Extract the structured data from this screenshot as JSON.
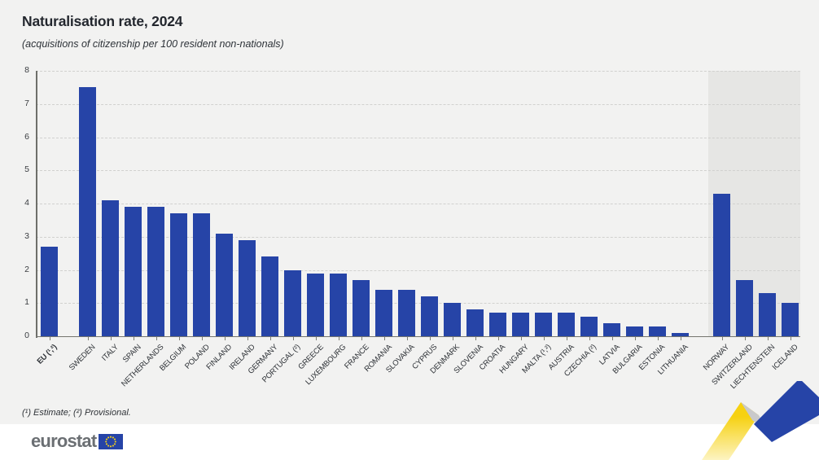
{
  "header": {
    "title": "Naturalisation rate, 2024",
    "subtitle": "(acquisitions of citizenship per 100 resident non-nationals)"
  },
  "footnote": "(¹) Estimate; (²) Provisional.",
  "logo": {
    "text": "eurostat"
  },
  "colors": {
    "bar": "#2644a7",
    "page_background": "#f2f2f1",
    "efta_band": "#e6e6e4",
    "grid": "#d1d1cf",
    "axis": "#6e6f6a",
    "footer_background": "#ffffff",
    "logo_gray": "#6b6f73",
    "flag_blue": "#2644a7",
    "star_yellow": "#f7d117",
    "ribbon_yellow": "#f7d117",
    "ribbon_gray": "#c9c9cb",
    "ribbon_blue": "#2644a7"
  },
  "chart_data": {
    "type": "bar",
    "title": "Naturalisation rate, 2024",
    "subtitle": "(acquisitions of citizenship per 100 resident non-nationals)",
    "xlabel": "",
    "ylabel": "",
    "ylim": [
      0,
      8
    ],
    "yticks": [
      0,
      1,
      2,
      3,
      4,
      5,
      6,
      7,
      8
    ],
    "grid": "horizontal dashed gridlines",
    "legend": "none",
    "highlighted_group": "efta (shaded background band)",
    "series": [
      {
        "label": "EU (¹,²)",
        "value": 2.7,
        "group": "eu",
        "bold": true
      },
      {
        "label": "SWEDEN",
        "value": 7.5,
        "group": "members"
      },
      {
        "label": "ITALY",
        "value": 4.1,
        "group": "members"
      },
      {
        "label": "SPAIN",
        "value": 3.9,
        "group": "members"
      },
      {
        "label": "NETHERLANDS",
        "value": 3.9,
        "group": "members"
      },
      {
        "label": "BELGIUM",
        "value": 3.7,
        "group": "members"
      },
      {
        "label": "POLAND",
        "value": 3.7,
        "group": "members"
      },
      {
        "label": "FINLAND",
        "value": 3.1,
        "group": "members"
      },
      {
        "label": "IRELAND",
        "value": 2.9,
        "group": "members"
      },
      {
        "label": "GERMANY",
        "value": 2.4,
        "group": "members"
      },
      {
        "label": "PORTUGAL (²)",
        "value": 2.0,
        "group": "members"
      },
      {
        "label": "GREECE",
        "value": 1.9,
        "group": "members"
      },
      {
        "label": "LUXEMBOURG",
        "value": 1.9,
        "group": "members"
      },
      {
        "label": "FRANCE",
        "value": 1.7,
        "group": "members"
      },
      {
        "label": "ROMANIA",
        "value": 1.4,
        "group": "members"
      },
      {
        "label": "SLOVAKIA",
        "value": 1.4,
        "group": "members"
      },
      {
        "label": "CYPRUS",
        "value": 1.2,
        "group": "members"
      },
      {
        "label": "DENMARK",
        "value": 1.0,
        "group": "members"
      },
      {
        "label": "SLOVENIA",
        "value": 0.8,
        "group": "members"
      },
      {
        "label": "CROATIA",
        "value": 0.7,
        "group": "members"
      },
      {
        "label": "HUNGARY",
        "value": 0.7,
        "group": "members"
      },
      {
        "label": "MALTA (¹,²)",
        "value": 0.7,
        "group": "members"
      },
      {
        "label": "AUSTRIA",
        "value": 0.7,
        "group": "members"
      },
      {
        "label": "CZECHIA (²)",
        "value": 0.6,
        "group": "members"
      },
      {
        "label": "LATVIA",
        "value": 0.4,
        "group": "members"
      },
      {
        "label": "BULGARIA",
        "value": 0.3,
        "group": "members"
      },
      {
        "label": "ESTONIA",
        "value": 0.3,
        "group": "members"
      },
      {
        "label": "LITHUANIA",
        "value": 0.1,
        "group": "members"
      },
      {
        "label": "NORWAY",
        "value": 4.3,
        "group": "efta"
      },
      {
        "label": "SWITZERLAND",
        "value": 1.7,
        "group": "efta"
      },
      {
        "label": "LIECHTENSTEIN",
        "value": 1.3,
        "group": "efta"
      },
      {
        "label": "ICELAND",
        "value": 1.0,
        "group": "efta"
      }
    ]
  }
}
